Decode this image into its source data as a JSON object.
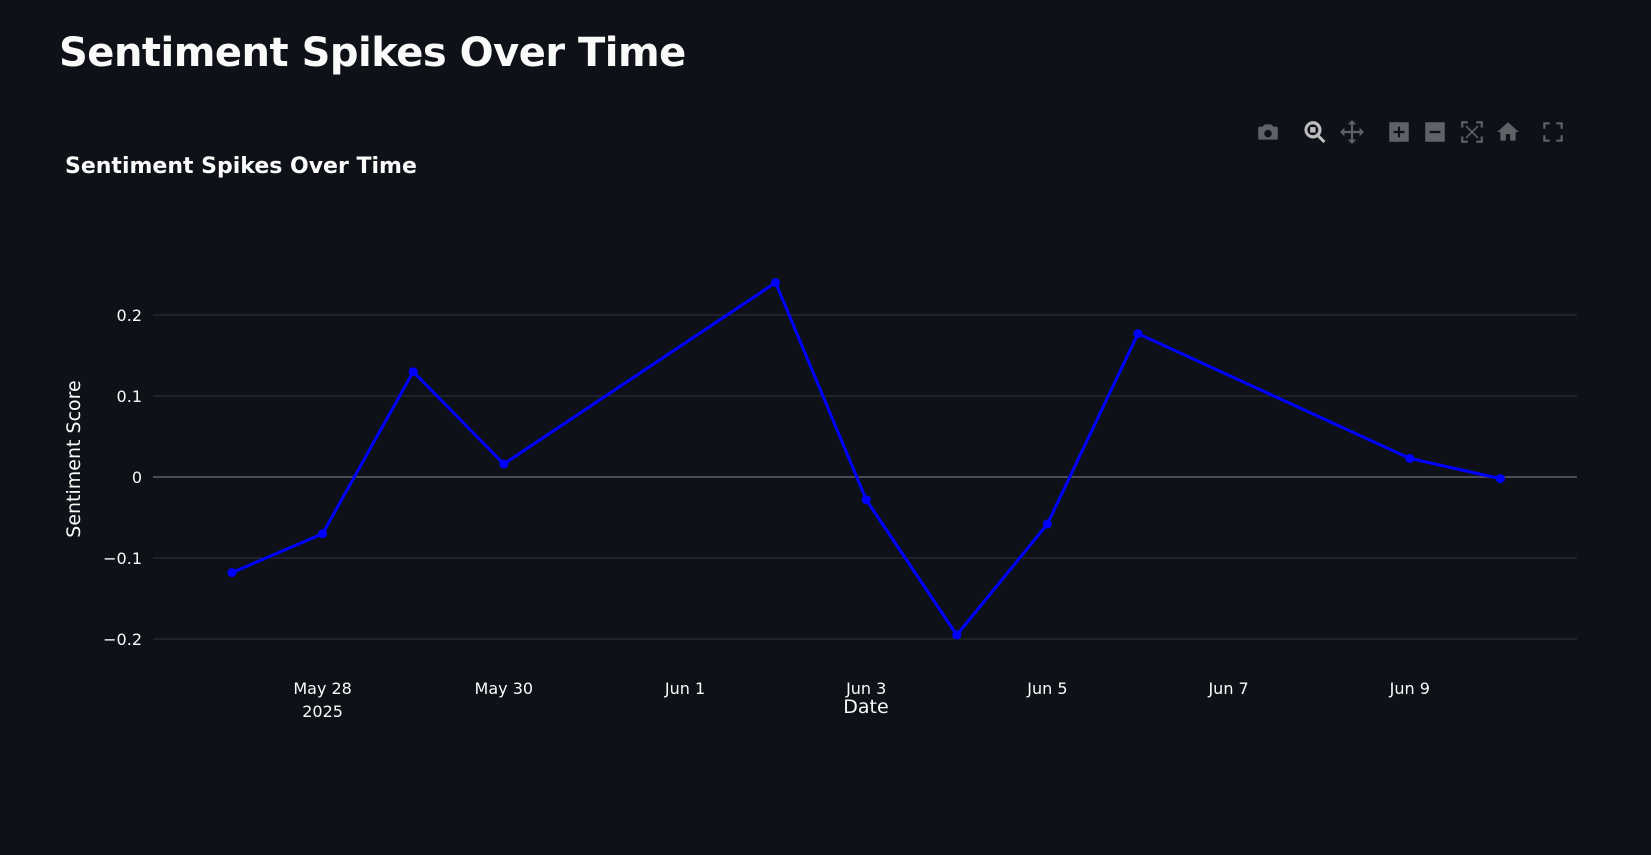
{
  "page": {
    "title": "Sentiment Spikes Over Time"
  },
  "modebar": {
    "buttons": [
      {
        "name": "camera-icon",
        "title": "Download plot as a png"
      },
      {
        "name": "zoom-icon",
        "title": "Zoom"
      },
      {
        "name": "pan-icon",
        "title": "Pan"
      },
      {
        "name": "zoom-in-icon",
        "title": "Zoom in"
      },
      {
        "name": "zoom-out-icon",
        "title": "Zoom out"
      },
      {
        "name": "autoscale-icon",
        "title": "Autoscale"
      },
      {
        "name": "home-icon",
        "title": "Reset axes"
      },
      {
        "name": "fullscreen-icon",
        "title": "Fullscreen"
      }
    ],
    "active": "zoom-icon",
    "icon_color": "#5f6368",
    "active_color": "#bdbdbd"
  },
  "chart_data": {
    "type": "line",
    "title": "Sentiment Spikes Over Time",
    "xlabel": "Date",
    "ylabel": "Sentiment Score",
    "x": [
      "2025-05-27",
      "2025-05-28",
      "2025-05-29",
      "2025-05-30",
      "2025-06-02",
      "2025-06-03",
      "2025-06-04",
      "2025-06-05",
      "2025-06-06",
      "2025-06-09",
      "2025-06-10"
    ],
    "series": [
      {
        "values": [
          -0.118,
          -0.07,
          0.13,
          0.016,
          0.24,
          -0.028,
          -0.195,
          -0.058,
          0.177,
          0.023,
          -0.002
        ],
        "color": "#0000ff",
        "mode": "lines+markers"
      }
    ],
    "ylim": [
      -0.2,
      0.2
    ],
    "yticks": [
      0.2,
      0.1,
      0,
      -0.1,
      -0.2
    ],
    "ytick_labels": [
      "0.2",
      "0.1",
      "0",
      "−0.1",
      "−0.2"
    ],
    "xticks": [
      {
        "date": "2025-05-28",
        "label": "May 28",
        "sublabel": "2025"
      },
      {
        "date": "2025-05-30",
        "label": "May 30"
      },
      {
        "date": "2025-06-01",
        "label": "Jun 1"
      },
      {
        "date": "2025-06-03",
        "label": "Jun 3"
      },
      {
        "date": "2025-06-05",
        "label": "Jun 5"
      },
      {
        "date": "2025-06-07",
        "label": "Jun 7"
      },
      {
        "date": "2025-06-09",
        "label": "Jun 9"
      }
    ],
    "grid": true,
    "legend": "none",
    "background": "#0e1117",
    "grid_color": "#31333f",
    "zeroline_color": "#4a4d57"
  }
}
